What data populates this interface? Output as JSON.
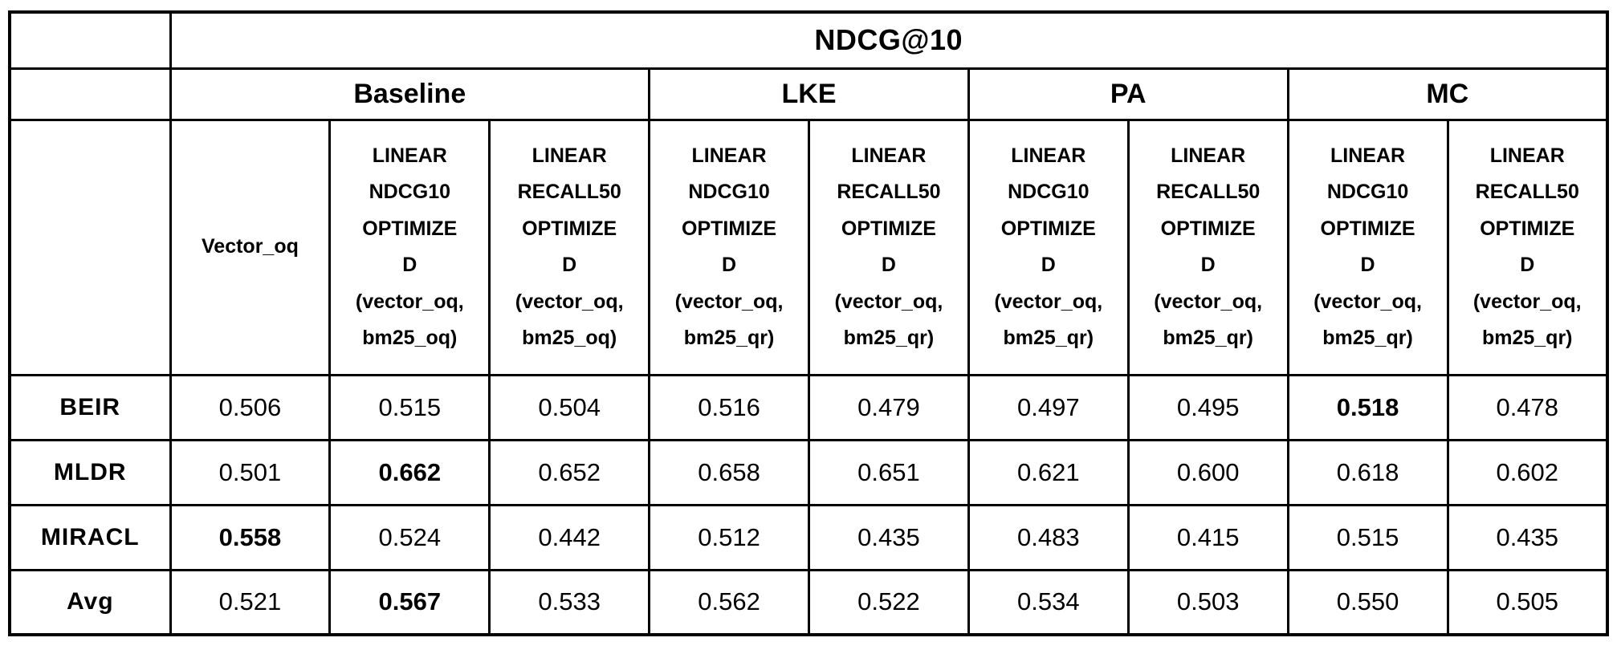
{
  "colors": {
    "background": "#ffffff",
    "border": "#000000",
    "text": "#000000"
  },
  "chart_data": {
    "type": "table",
    "title": "NDCG@10",
    "corner_label": "",
    "column_groups": [
      {
        "label": "Baseline",
        "colspan": 3
      },
      {
        "label": "LKE",
        "colspan": 2
      },
      {
        "label": "PA",
        "colspan": 2
      },
      {
        "label": "MC",
        "colspan": 2
      }
    ],
    "column_headers": [
      "Vector_oq",
      "LINEAR\nNDCG10\nOPTIMIZE\nD\n(vector_oq,\nbm25_oq)",
      "LINEAR\nRECALL50\nOPTIMIZE\nD\n(vector_oq,\nbm25_oq)",
      "LINEAR\nNDCG10\nOPTIMIZE\nD\n(vector_oq,\nbm25_qr)",
      "LINEAR\nRECALL50\nOPTIMIZE\nD\n(vector_oq,\nbm25_qr)",
      "LINEAR\nNDCG10\nOPTIMIZE\nD\n(vector_oq,\nbm25_qr)",
      "LINEAR\nRECALL50\nOPTIMIZE\nD\n(vector_oq,\nbm25_qr)",
      "LINEAR\nNDCG10\nOPTIMIZE\nD\n(vector_oq,\nbm25_qr)",
      "LINEAR\nRECALL50\nOPTIMIZE\nD\n(vector_oq,\nbm25_qr)"
    ],
    "rows": [
      {
        "label": "BEIR",
        "values": [
          "0.506",
          "0.515",
          "0.504",
          "0.516",
          "0.479",
          "0.497",
          "0.495",
          "0.518",
          "0.478"
        ],
        "bold_value_index": 7
      },
      {
        "label": "MLDR",
        "values": [
          "0.501",
          "0.662",
          "0.652",
          "0.658",
          "0.651",
          "0.621",
          "0.600",
          "0.618",
          "0.602"
        ],
        "bold_value_index": 1
      },
      {
        "label": "MIRACL",
        "values": [
          "0.558",
          "0.524",
          "0.442",
          "0.512",
          "0.435",
          "0.483",
          "0.415",
          "0.515",
          "0.435"
        ],
        "bold_value_index": 0
      },
      {
        "label": "Avg",
        "values": [
          "0.521",
          "0.567",
          "0.533",
          "0.562",
          "0.522",
          "0.534",
          "0.503",
          "0.550",
          "0.505"
        ],
        "bold_value_index": 1
      }
    ]
  }
}
